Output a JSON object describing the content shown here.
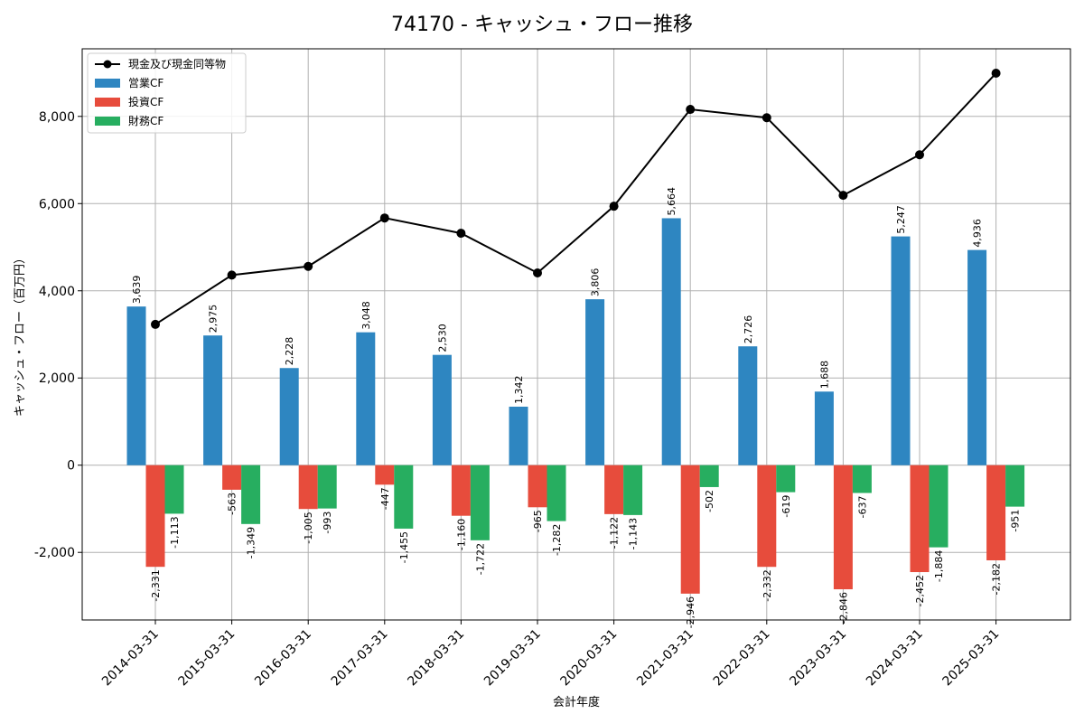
{
  "chart_data": {
    "type": "bar",
    "title": "74170 - キャッシュ・フロー推移",
    "xlabel": "会計年度",
    "ylabel": "キャッシュ・フロー（百万円）",
    "categories": [
      "2014-03-31",
      "2015-03-31",
      "2016-03-31",
      "2017-03-31",
      "2018-03-31",
      "2019-03-31",
      "2020-03-31",
      "2021-03-31",
      "2022-03-31",
      "2023-03-31",
      "2024-03-31",
      "2025-03-31"
    ],
    "series": [
      {
        "name": "営業CF",
        "kind": "bar",
        "color": "#2e86c1",
        "values": [
          3639,
          2975,
          2228,
          3048,
          2530,
          1342,
          3806,
          5664,
          2726,
          1688,
          5247,
          4936
        ]
      },
      {
        "name": "投資CF",
        "kind": "bar",
        "color": "#e74c3c",
        "values": [
          -2331,
          -563,
          -1005,
          -447,
          -1160,
          -965,
          -1122,
          -2946,
          -2332,
          -2846,
          -2452,
          -2182
        ]
      },
      {
        "name": "財務CF",
        "kind": "bar",
        "color": "#27ae60",
        "values": [
          -1113,
          -1349,
          -993,
          -1455,
          -1722,
          -1282,
          -1143,
          -502,
          -619,
          -637,
          -1884,
          -951
        ]
      },
      {
        "name": "現金及び現金同等物",
        "kind": "line",
        "color": "#000000",
        "values": [
          3230,
          4360,
          4560,
          5670,
          5320,
          4410,
          5940,
          8160,
          7970,
          6190,
          7120,
          8990
        ]
      }
    ],
    "ylim": [
      -3550,
      9550
    ],
    "yticks": [
      -2000,
      0,
      2000,
      4000,
      6000,
      8000
    ],
    "ytick_labels": [
      "-2,000",
      "0",
      "2,000",
      "4,000",
      "6,000",
      "8,000"
    ],
    "grid": true,
    "legend_position": "top-left"
  }
}
